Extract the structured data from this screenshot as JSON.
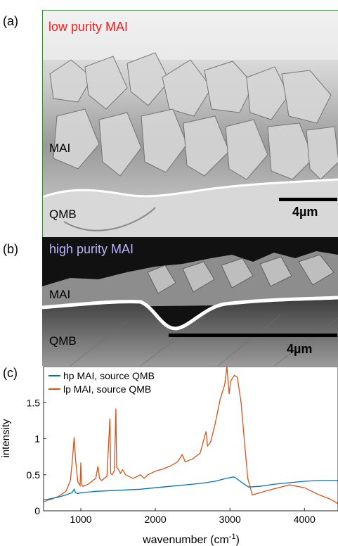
{
  "panels": {
    "a": {
      "letter": "(a)",
      "title": "low purity MAI",
      "title_color": "#ff1a1a",
      "layer_top": "MAI",
      "layer_bottom": "QMB",
      "scalebar": "4µm"
    },
    "b": {
      "letter": "(b)",
      "title": "high purity MAI",
      "title_color": "#b9b6ff",
      "layer_top": "MAI",
      "layer_bottom": "QMB",
      "scalebar": "4µm"
    },
    "c": {
      "letter": "(c)"
    }
  },
  "chart_data": {
    "type": "line",
    "xlabel": "wavenumber (cm",
    "xlabel_sup": "-1",
    "xlabel_end": ")",
    "ylabel": "intensity",
    "xlim": [
      500,
      4450
    ],
    "ylim": [
      0,
      2.0
    ],
    "xticks": [
      1000,
      2000,
      3000,
      4000
    ],
    "yticks": [
      0,
      0.5,
      1,
      1.5
    ],
    "ytick_labels": [
      "0",
      "0.5",
      "1",
      "1.5"
    ],
    "legend_position": "top-left",
    "series": [
      {
        "name": "hp MAI, source QMB",
        "color": "#0072bd",
        "x": [
          500,
          600,
          700,
          800,
          880,
          910,
          930,
          960,
          1000,
          1200,
          1400,
          1600,
          1800,
          2000,
          2200,
          2400,
          2600,
          2800,
          2950,
          3050,
          3100,
          3150,
          3250,
          3400,
          3600,
          3800,
          4000,
          4200,
          4450
        ],
        "y": [
          0.15,
          0.17,
          0.19,
          0.22,
          0.25,
          0.3,
          0.25,
          0.24,
          0.25,
          0.27,
          0.28,
          0.29,
          0.3,
          0.32,
          0.34,
          0.36,
          0.38,
          0.41,
          0.45,
          0.47,
          0.44,
          0.4,
          0.33,
          0.34,
          0.37,
          0.39,
          0.41,
          0.42,
          0.42
        ]
      },
      {
        "name": "lp MAI, source QMB",
        "color": "#d95319",
        "x": [
          500,
          560,
          600,
          700,
          800,
          860,
          890,
          910,
          930,
          960,
          990,
          1000,
          1010,
          1030,
          1100,
          1200,
          1230,
          1250,
          1280,
          1350,
          1390,
          1400,
          1420,
          1450,
          1470,
          1480,
          1500,
          1530,
          1560,
          1600,
          1700,
          1800,
          1850,
          1900,
          2000,
          2100,
          2200,
          2300,
          2360,
          2400,
          2500,
          2600,
          2680,
          2700,
          2740,
          2800,
          2870,
          2930,
          2960,
          2990,
          3010,
          3060,
          3100,
          3150,
          3200,
          3240,
          3300,
          3500,
          3800,
          4000,
          4200,
          4350,
          4450
        ],
        "y": [
          0.12,
          0.15,
          0.16,
          0.2,
          0.27,
          0.42,
          0.75,
          1.02,
          0.7,
          0.4,
          0.35,
          0.67,
          0.36,
          0.34,
          0.37,
          0.45,
          0.62,
          0.45,
          0.42,
          0.48,
          1.28,
          0.52,
          0.5,
          0.56,
          1.42,
          0.6,
          0.58,
          0.52,
          0.57,
          0.5,
          0.45,
          0.5,
          0.45,
          0.5,
          0.55,
          0.58,
          0.62,
          0.68,
          0.78,
          0.68,
          0.72,
          0.8,
          1.1,
          0.9,
          0.95,
          1.2,
          1.55,
          1.75,
          2.0,
          1.62,
          1.8,
          1.88,
          1.85,
          1.5,
          0.9,
          0.45,
          0.22,
          0.28,
          0.36,
          0.32,
          0.22,
          0.16,
          0.1
        ]
      }
    ]
  }
}
